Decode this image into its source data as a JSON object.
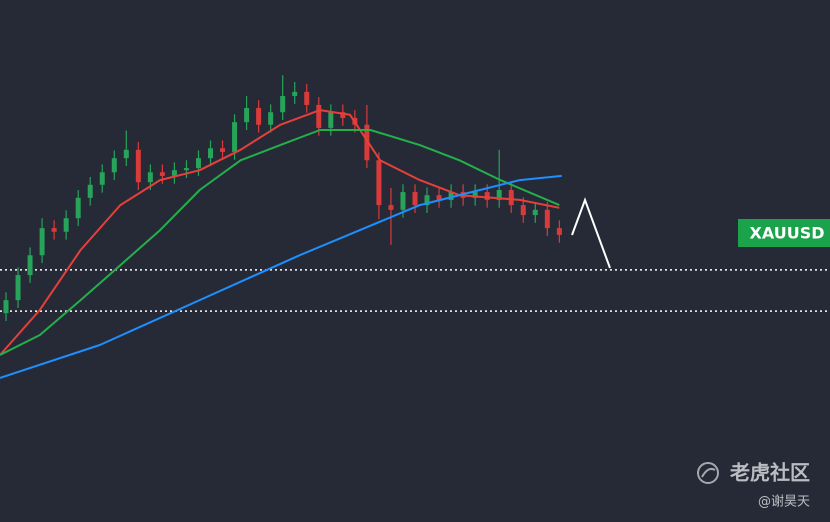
{
  "chart_data": {
    "type": "candlestick",
    "symbol": "XAUUSD",
    "xlim": [
      -0.5,
      68.5
    ],
    "ylim": [
      0,
      100
    ],
    "up_color": "#27a35a",
    "down_color": "#d93b3b",
    "open": [
      40.0,
      42.5,
      47.3,
      51.1,
      56.3,
      55.6,
      58.2,
      62.1,
      64.6,
      67.0,
      69.7,
      71.3,
      65.1,
      67.0,
      66.3,
      67.4,
      67.8,
      69.7,
      71.6,
      70.9,
      76.6,
      79.3,
      76.1,
      78.5,
      81.6,
      82.4,
      79.9,
      75.5,
      78.5,
      77.4,
      76.1,
      69.3,
      60.7,
      59.8,
      63.2,
      60.7,
      62.6,
      61.7,
      63.2,
      62.1,
      63.2,
      61.7,
      63.6,
      60.7,
      58.8,
      59.8,
      56.3
    ],
    "high": [
      44.0,
      48.8,
      52.6,
      58.2,
      57.8,
      59.7,
      63.6,
      66.1,
      68.5,
      71.2,
      75.0,
      72.8,
      68.5,
      68.5,
      68.9,
      69.3,
      71.2,
      73.1,
      73.1,
      78.1,
      81.6,
      80.8,
      80.0,
      85.6,
      84.3,
      83.9,
      81.4,
      80.0,
      80.0,
      78.9,
      79.9,
      70.8,
      64.0,
      64.7,
      64.7,
      64.1,
      64.1,
      64.7,
      64.7,
      64.7,
      64.7,
      71.3,
      65.1,
      62.2,
      61.3,
      61.3,
      57.8
    ],
    "low": [
      38.5,
      41.0,
      45.8,
      49.6,
      54.1,
      54.1,
      56.7,
      60.6,
      63.1,
      65.5,
      68.2,
      63.6,
      63.6,
      64.8,
      64.8,
      65.9,
      66.3,
      68.2,
      69.4,
      69.4,
      75.1,
      74.6,
      74.6,
      77.0,
      80.1,
      78.4,
      74.0,
      74.0,
      75.9,
      74.6,
      67.8,
      58.0,
      53.1,
      58.3,
      59.2,
      59.2,
      60.2,
      60.2,
      60.6,
      60.6,
      60.2,
      60.2,
      59.2,
      57.3,
      57.3,
      54.8,
      53.5
    ],
    "close": [
      42.5,
      47.3,
      51.1,
      56.3,
      55.6,
      58.2,
      62.1,
      64.6,
      67.0,
      69.7,
      71.3,
      65.1,
      67.0,
      66.3,
      67.4,
      67.8,
      69.7,
      71.6,
      70.9,
      76.6,
      79.3,
      76.1,
      78.5,
      81.6,
      82.4,
      79.9,
      75.5,
      78.5,
      77.4,
      76.1,
      69.3,
      60.7,
      59.8,
      63.2,
      60.7,
      62.6,
      61.7,
      63.2,
      62.1,
      63.2,
      61.7,
      63.6,
      60.7,
      58.8,
      59.8,
      56.3,
      55.0
    ],
    "series": [
      {
        "color": "#e5403a",
        "x": [
          -0.5,
          2.8,
          6.2,
          9.5,
          12.8,
          16.1,
          19.5,
          22.8,
          26.1,
          28.6,
          31.1,
          34.4,
          37.7,
          42.7,
          46
        ],
        "values": [
          32.0,
          40.6,
          52.1,
          60.7,
          65.5,
          67.4,
          71.3,
          76.1,
          78.9,
          78.0,
          69.3,
          65.5,
          62.6,
          61.7,
          60.2
        ]
      },
      {
        "color": "#23b04b",
        "x": [
          -0.5,
          2.8,
          6.2,
          9.5,
          12.8,
          16.1,
          19.5,
          22.8,
          26.1,
          30.3,
          34.4,
          37.7,
          41.1,
          46
        ],
        "values": [
          32.0,
          35.8,
          42.5,
          49.2,
          55.9,
          63.6,
          69.3,
          72.2,
          75.1,
          75.1,
          72.2,
          69.3,
          65.5,
          60.7
        ]
      },
      {
        "color": "#1e8fff",
        "x": [
          -0.5,
          7.8,
          16.1,
          24.4,
          29.4,
          34.4,
          39.4,
          42.7,
          46.2
        ],
        "values": [
          27.6,
          33.9,
          42.5,
          51.1,
          55.9,
          60.7,
          63.6,
          65.5,
          66.3
        ]
      }
    ],
    "levels": [
      48.3,
      40.4
    ],
    "level_color": "#ffffff",
    "watermark": {
      "brand": "老虎社区",
      "author": "@谢昊天"
    }
  }
}
